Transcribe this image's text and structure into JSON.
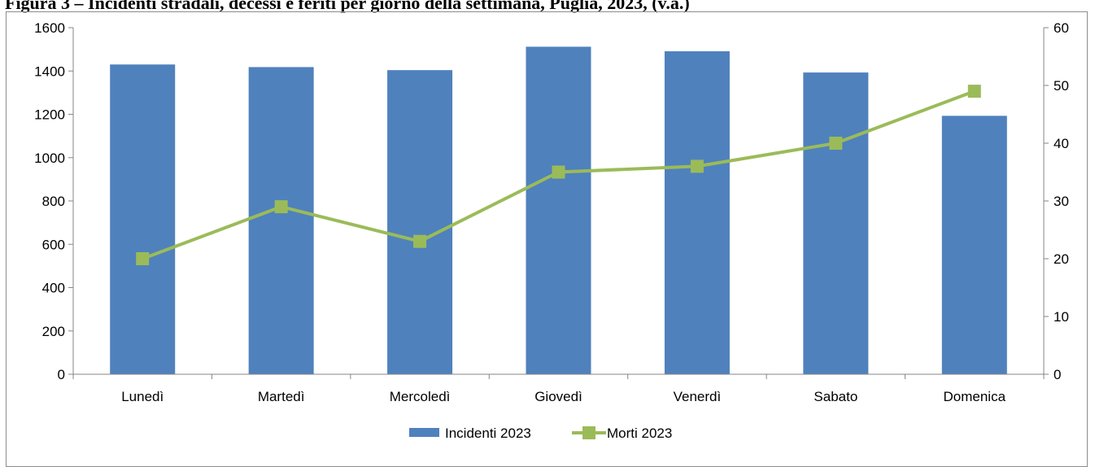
{
  "caption": "Figura 3 – Incidenti stradali, decessi e feriti per giorno della settimana, Puglia, 2023, (v.a.)",
  "colors": {
    "bars": "#4f81bd",
    "line": "#9bbb59",
    "axis": "#868686"
  },
  "chart_data": {
    "type": "bar",
    "title": "",
    "xlabel": "",
    "ylabel": "",
    "categories": [
      "Lunedì",
      "Martedì",
      "Mercoledì",
      "Giovedì",
      "Venerdì",
      "Sabato",
      "Domenica"
    ],
    "ylim": [
      0,
      1600
    ],
    "y_ticks": [
      0,
      200,
      400,
      600,
      800,
      1000,
      1200,
      1400,
      1600
    ],
    "y2lim": [
      0,
      60
    ],
    "y2_ticks": [
      0,
      10,
      20,
      30,
      40,
      50,
      60
    ],
    "grid": false,
    "legend_position": "bottom",
    "series": [
      {
        "name": "Incidenti 2023",
        "type": "bar",
        "axis": "left",
        "values": [
          1430,
          1418,
          1404,
          1512,
          1491,
          1393,
          1193
        ]
      },
      {
        "name": "Morti 2023",
        "type": "line",
        "axis": "right",
        "marker": "square",
        "values": [
          20,
          29,
          23,
          35,
          36,
          40,
          49
        ]
      }
    ]
  }
}
